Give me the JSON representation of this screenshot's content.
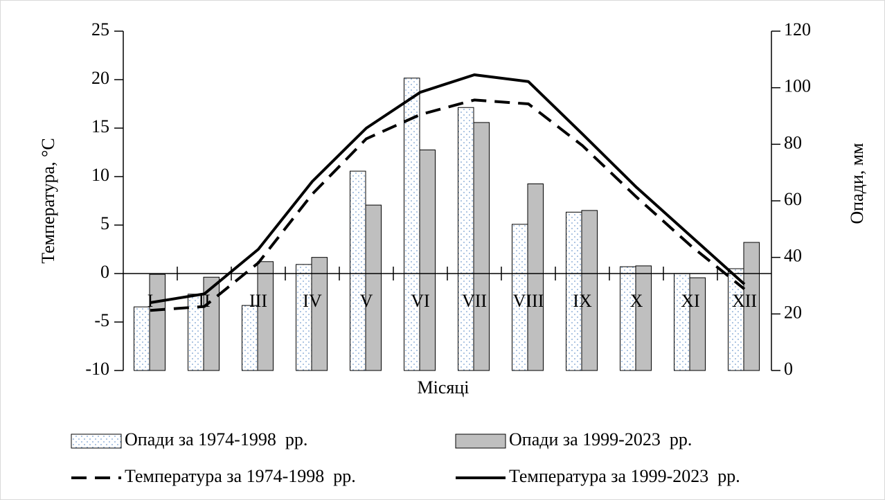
{
  "chart_data": {
    "type": "bar",
    "x_label": "Місяці",
    "y_label": "Температура, °С",
    "y2_label": "Опади, мм",
    "categories": [
      "I",
      "II",
      "III",
      "IV",
      "V",
      "VI",
      "VII",
      "VIII",
      "IX",
      "X",
      "XI",
      "XII"
    ],
    "ylim": [
      -10,
      25
    ],
    "yticks": [
      -10,
      -5,
      0,
      5,
      10,
      15,
      20,
      25
    ],
    "y2lim": [
      0,
      120
    ],
    "y2ticks": [
      0,
      20,
      40,
      60,
      80,
      100,
      120
    ],
    "series": [
      {
        "name": "Опади за 1974-1998  рр.",
        "type": "bar",
        "axis": "y2",
        "color": "#ffffff",
        "values": [
          22.5,
          27,
          23,
          37.5,
          70.5,
          103.4,
          93,
          51.7,
          56,
          36.7,
          34.3,
          36
        ]
      },
      {
        "name": "Опади за 1999-2023  рр.",
        "type": "bar",
        "axis": "y2",
        "color": "#bfbfbf",
        "values": [
          34,
          33,
          38.5,
          40,
          58.5,
          78,
          87.7,
          66,
          56.6,
          37,
          32.8,
          45.3
        ]
      },
      {
        "name": "Температура за 1974-1998  рр.",
        "type": "line",
        "dashed": true,
        "color": "#000000",
        "values": [
          -3.8,
          -3.4,
          1.1,
          8.2,
          13.9,
          16.4,
          17.9,
          17.5,
          13.2,
          7.9,
          2.9,
          -1.6
        ]
      },
      {
        "name": "Температура за 1999-2023  рр.",
        "type": "line",
        "dashed": false,
        "color": "#000000",
        "values": [
          -3.0,
          -2.1,
          2.5,
          9.5,
          15.0,
          18.7,
          20.5,
          19.8,
          14.4,
          8.9,
          3.9,
          -1.1
        ]
      }
    ],
    "legend": "bottom"
  }
}
